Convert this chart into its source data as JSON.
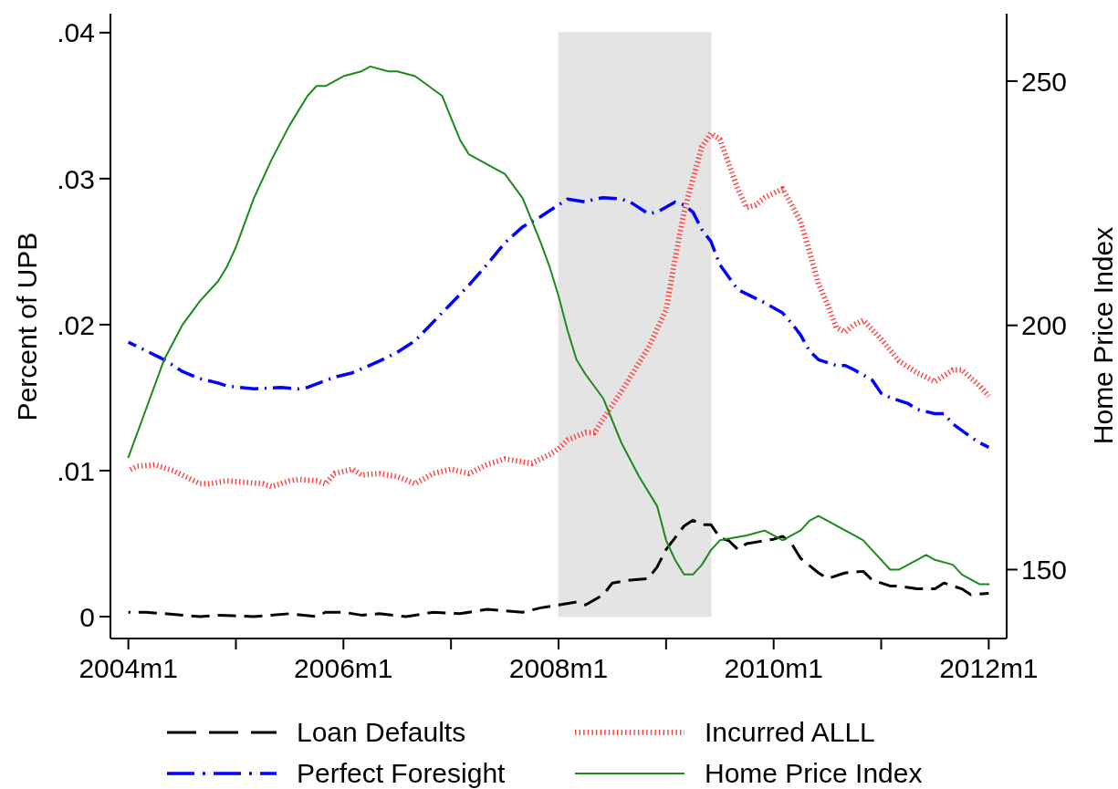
{
  "chart_data": {
    "type": "line",
    "ylabel": "Percent of UPB",
    "y2label": "Home Price Index",
    "xlim": [
      "2003-11",
      "2012-03"
    ],
    "xticks": [
      {
        "value": "2004-01",
        "label": "2004m1"
      },
      {
        "value": "2005-01",
        "label": null
      },
      {
        "value": "2006-01",
        "label": "2006m1"
      },
      {
        "value": "2007-01",
        "label": null
      },
      {
        "value": "2008-01",
        "label": "2008m1"
      },
      {
        "value": "2009-01",
        "label": null
      },
      {
        "value": "2010-01",
        "label": "2010m1"
      },
      {
        "value": "2011-01",
        "label": null
      },
      {
        "value": "2012-01",
        "label": "2012m1"
      }
    ],
    "ylim": [
      -0.0015,
      0.0413
    ],
    "yticks": [
      0,
      {
        "value": 0.01,
        "label": ".01"
      },
      {
        "value": 0.02,
        "label": ".02"
      },
      {
        "value": 0.03,
        "label": ".03"
      },
      {
        "value": 0.04,
        "label": ".04"
      }
    ],
    "y2lim": [
      135.9,
      263.8
    ],
    "y2ticks": [
      150,
      200,
      250
    ],
    "legend": "bottom",
    "marker": "none",
    "bands": [
      {
        "axis": "x",
        "from": "2008-01",
        "to": "2009-06",
        "color": "#e4e4e4"
      }
    ],
    "series": [
      {
        "name": "Loan Defaults",
        "color": "#000000",
        "line_style": "dashed",
        "x": [
          "2004-01",
          "2004-03",
          "2004-05",
          "2004-09",
          "2004-11",
          "2005-03",
          "2005-07",
          "2005-10",
          "2005-11",
          "2006-01",
          "2006-03",
          "2006-05",
          "2006-08",
          "2006-11",
          "2007-02",
          "2007-05",
          "2007-09",
          "2007-11",
          "2008-01",
          "2008-03",
          "2008-04",
          "2008-06",
          "2008-07",
          "2008-09",
          "2008-11",
          "2008-12",
          "2009-01",
          "2009-02",
          "2009-03",
          "2009-04",
          "2009-05",
          "2009-06",
          "2009-07",
          "2009-08",
          "2009-09",
          "2009-10",
          "2009-11",
          "2010-01",
          "2010-02",
          "2010-03",
          "2010-04",
          "2010-06",
          "2010-07",
          "2010-09",
          "2010-11",
          "2010-12",
          "2011-02",
          "2011-03",
          "2011-05",
          "2011-07",
          "2011-08",
          "2011-10",
          "2011-11",
          "2012-01"
        ],
        "values": [
          0.0003,
          0.0003,
          0.0002,
          0,
          0.0001,
          0,
          0.0002,
          0,
          0.0003,
          0.0003,
          0.0001,
          0.0002,
          0,
          0.0003,
          0.0002,
          0.0005,
          0.0003,
          0.0006,
          0.0008,
          0.001,
          0.0008,
          0.0015,
          0.0023,
          0.0025,
          0.0026,
          0.0034,
          0.0046,
          0.0054,
          0.0062,
          0.0066,
          0.0063,
          0.0063,
          0.0054,
          0.0052,
          0.0046,
          0.005,
          0.0051,
          0.0053,
          0.0055,
          0.005,
          0.004,
          0.003,
          0.0026,
          0.003,
          0.0031,
          0.0025,
          0.0021,
          0.0021,
          0.0019,
          0.0019,
          0.0023,
          0.0019,
          0.0015,
          0.0016
        ]
      },
      {
        "name": "Incurred ALLL",
        "color": "#ff4040",
        "line_style": "dotted",
        "x": [
          "2004-01",
          "2004-02",
          "2004-04",
          "2004-06",
          "2004-08",
          "2004-09",
          "2004-10",
          "2004-12",
          "2005-02",
          "2005-04",
          "2005-05",
          "2005-07",
          "2005-08",
          "2005-10",
          "2005-11",
          "2005-12",
          "2006-02",
          "2006-03",
          "2006-05",
          "2006-07",
          "2006-09",
          "2006-11",
          "2007-01",
          "2007-03",
          "2007-05",
          "2007-07",
          "2007-10",
          "2007-12",
          "2008-01",
          "2008-02",
          "2008-04",
          "2008-05",
          "2008-07",
          "2008-08",
          "2008-10",
          "2008-11",
          "2008-12",
          "2009-01",
          "2009-02",
          "2009-03",
          "2009-04",
          "2009-05",
          "2009-06",
          "2009-07",
          "2009-08",
          "2009-09",
          "2009-10",
          "2009-11",
          "2009-12",
          "2010-02",
          "2010-03",
          "2010-04",
          "2010-05",
          "2010-06",
          "2010-07",
          "2010-08",
          "2010-09",
          "2010-10",
          "2010-11",
          "2011-01",
          "2011-03",
          "2011-05",
          "2011-06",
          "2011-07",
          "2011-09",
          "2011-10",
          "2011-12",
          "2012-01"
        ],
        "values": [
          0.01,
          0.0103,
          0.0104,
          0.01,
          0.0094,
          0.0091,
          0.0091,
          0.0093,
          0.0092,
          0.0091,
          0.0089,
          0.0093,
          0.0094,
          0.0093,
          0.0091,
          0.0098,
          0.0101,
          0.0097,
          0.0098,
          0.0096,
          0.0091,
          0.0098,
          0.0101,
          0.0098,
          0.0104,
          0.0108,
          0.0105,
          0.0111,
          0.0115,
          0.0121,
          0.0126,
          0.0126,
          0.0145,
          0.0154,
          0.0174,
          0.0184,
          0.0197,
          0.021,
          0.0245,
          0.0277,
          0.03,
          0.0322,
          0.0331,
          0.0327,
          0.031,
          0.0293,
          0.028,
          0.0282,
          0.0287,
          0.0293,
          0.0282,
          0.0271,
          0.025,
          0.0228,
          0.0214,
          0.0198,
          0.0195,
          0.02,
          0.0203,
          0.019,
          0.0175,
          0.0167,
          0.0164,
          0.0161,
          0.0169,
          0.0169,
          0.0158,
          0.0151
        ]
      },
      {
        "name": "Perfect Foresight",
        "color": "#0000ff",
        "line_style": "dashdot",
        "x": [
          "2004-01",
          "2004-03",
          "2004-05",
          "2004-07",
          "2004-09",
          "2004-11",
          "2004-12",
          "2005-03",
          "2005-06",
          "2005-08",
          "2005-09",
          "2005-12",
          "2006-02",
          "2006-05",
          "2006-07",
          "2006-09",
          "2006-12",
          "2007-03",
          "2007-05",
          "2007-07",
          "2007-09",
          "2007-11",
          "2008-01",
          "2008-02",
          "2008-04",
          "2008-05",
          "2008-06",
          "2008-08",
          "2008-09",
          "2008-11",
          "2008-12",
          "2009-02",
          "2009-03",
          "2009-04",
          "2009-05",
          "2009-06",
          "2009-07",
          "2009-09",
          "2009-11",
          "2009-12",
          "2010-02",
          "2010-03",
          "2010-04",
          "2010-05",
          "2010-06",
          "2010-08",
          "2010-09",
          "2010-10",
          "2010-12",
          "2011-01",
          "2011-02",
          "2011-04",
          "2011-05",
          "2011-07",
          "2011-08",
          "2011-09",
          "2011-11",
          "2011-12",
          "2012-01"
        ],
        "values": [
          0.0188,
          0.0182,
          0.0176,
          0.0168,
          0.0163,
          0.016,
          0.0158,
          0.0156,
          0.0157,
          0.0156,
          0.0157,
          0.0164,
          0.0167,
          0.0175,
          0.0181,
          0.0189,
          0.0208,
          0.0227,
          0.0241,
          0.0256,
          0.0267,
          0.0274,
          0.0282,
          0.0286,
          0.0284,
          0.0286,
          0.0287,
          0.0286,
          0.0284,
          0.0276,
          0.0277,
          0.0284,
          0.0282,
          0.0277,
          0.0265,
          0.0257,
          0.0241,
          0.0224,
          0.0218,
          0.0215,
          0.0208,
          0.0201,
          0.0193,
          0.0182,
          0.0176,
          0.0172,
          0.0172,
          0.0169,
          0.0162,
          0.0153,
          0.015,
          0.0146,
          0.0142,
          0.0139,
          0.0139,
          0.0132,
          0.0123,
          0.0119,
          0.0116
        ]
      },
      {
        "name": "Home Price Index",
        "color": "#1a8a1a",
        "line_style": "solid",
        "axis": "y2",
        "x": [
          "2004-01",
          "2004-03",
          "2004-05",
          "2004-07",
          "2004-09",
          "2004-11",
          "2004-12",
          "2005-01",
          "2005-03",
          "2005-05",
          "2005-07",
          "2005-09",
          "2005-10",
          "2005-11",
          "2006-01",
          "2006-03",
          "2006-04",
          "2006-06",
          "2006-07",
          "2006-09",
          "2006-12",
          "2007-02",
          "2007-03",
          "2007-04",
          "2007-06",
          "2007-07",
          "2007-09",
          "2007-11",
          "2007-12",
          "2008-01",
          "2008-02",
          "2008-03",
          "2008-04",
          "2008-06",
          "2008-08",
          "2008-10",
          "2008-12",
          "2009-01",
          "2009-02",
          "2009-03",
          "2009-04",
          "2009-05",
          "2009-06",
          "2009-07",
          "2009-10",
          "2009-12",
          "2010-01",
          "2010-02",
          "2010-03",
          "2010-04",
          "2010-05",
          "2010-06",
          "2010-07",
          "2010-09",
          "2010-10",
          "2010-11",
          "2010-12",
          "2011-02",
          "2011-03",
          "2011-04",
          "2011-05",
          "2011-06",
          "2011-07",
          "2011-09",
          "2011-10",
          "2011-12",
          "2012-01"
        ],
        "values": [
          173,
          183,
          193,
          200,
          205,
          209,
          212,
          216,
          226,
          234,
          241,
          247,
          249,
          249,
          251,
          252,
          253,
          252,
          252,
          251,
          247,
          238,
          235,
          234,
          232,
          231,
          226,
          217,
          212,
          206,
          199,
          193,
          190,
          185,
          176,
          169,
          163,
          156,
          152,
          149,
          149,
          151,
          154,
          156,
          157,
          158,
          157,
          156,
          157,
          158,
          160,
          161,
          160,
          158,
          157,
          156,
          154,
          150,
          150,
          151,
          152,
          153,
          152,
          151,
          149,
          147,
          147
        ]
      }
    ]
  }
}
